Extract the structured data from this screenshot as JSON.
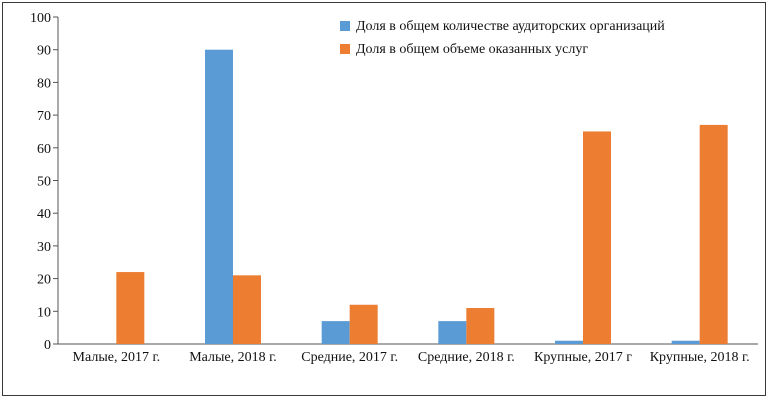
{
  "chart_data": {
    "type": "bar",
    "categories": [
      "Малые, 2017 г.",
      "Малые, 2018 г.",
      "Средние, 2017 г.",
      "Средние, 2018 г.",
      "Крупные, 2017 г",
      "Крупные, 2018 г."
    ],
    "series": [
      {
        "name": "Доля в общем количестве аудиторских организаций",
        "color": "#5b9bd5",
        "values": [
          0,
          90,
          7,
          7,
          1,
          1
        ]
      },
      {
        "name": "Доля в общем объеме оказанных услуг",
        "color": "#ed7d31",
        "values": [
          22,
          21,
          12,
          11,
          65,
          67
        ]
      }
    ],
    "title": "",
    "xlabel": "",
    "ylabel": "",
    "ylim": [
      0,
      100
    ],
    "yticks": [
      0,
      10,
      20,
      30,
      40,
      50,
      60,
      70,
      80,
      90,
      100
    ],
    "grid": false,
    "legend": "top-right"
  }
}
